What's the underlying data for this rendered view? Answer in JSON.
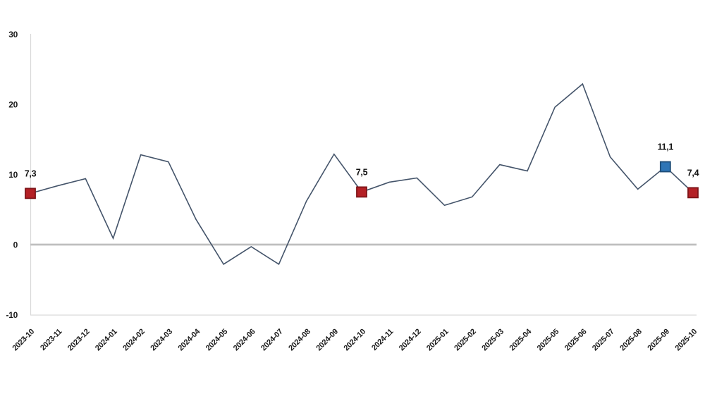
{
  "chart_data": {
    "type": "line",
    "title": "",
    "xlabel": "",
    "ylabel": "",
    "x": [
      "2023-10",
      "2023-11",
      "2023-12",
      "2024-01",
      "2024-02",
      "2024-03",
      "2024-04",
      "2024-05",
      "2024-06",
      "2024-07",
      "2024-08",
      "2024-09",
      "2024-10",
      "2024-11",
      "2024-12",
      "2025-01",
      "2025-02",
      "2025-03",
      "2025-04",
      "2025-05",
      "2025-06",
      "2025-07",
      "2025-08",
      "2025-09",
      "2025-10"
    ],
    "values": [
      7.3,
      8.4,
      9.4,
      0.9,
      12.8,
      11.8,
      3.6,
      -2.8,
      -0.3,
      -2.8,
      6.2,
      12.9,
      7.5,
      8.9,
      9.5,
      5.6,
      6.8,
      11.4,
      10.5,
      19.6,
      22.9,
      12.5,
      7.9,
      11.1,
      7.4
    ],
    "ylim": [
      -10,
      30
    ],
    "yticks": [
      30,
      20,
      10,
      0,
      -10
    ],
    "grid": false,
    "legend": "none",
    "zero_line": true,
    "line_color": "#44546A",
    "axis_color": "#D9D9D9",
    "zero_line_color": "#BFBFBF",
    "tick_label_color": "#1a1a1a",
    "markers": [
      {
        "x": "2023-10",
        "index": 0,
        "value": 7.3,
        "label": "7,3",
        "fill": "#B42025",
        "border": "#7E1418"
      },
      {
        "x": "2024-10",
        "index": 12,
        "value": 7.5,
        "label": "7,5",
        "fill": "#B42025",
        "border": "#7E1418"
      },
      {
        "x": "2025-09",
        "index": 23,
        "value": 11.1,
        "label": "11,1",
        "fill": "#2E75B6",
        "border": "#1F4E79"
      },
      {
        "x": "2025-10",
        "index": 24,
        "value": 7.4,
        "label": "7,4",
        "fill": "#B42025",
        "border": "#7E1418"
      }
    ]
  }
}
